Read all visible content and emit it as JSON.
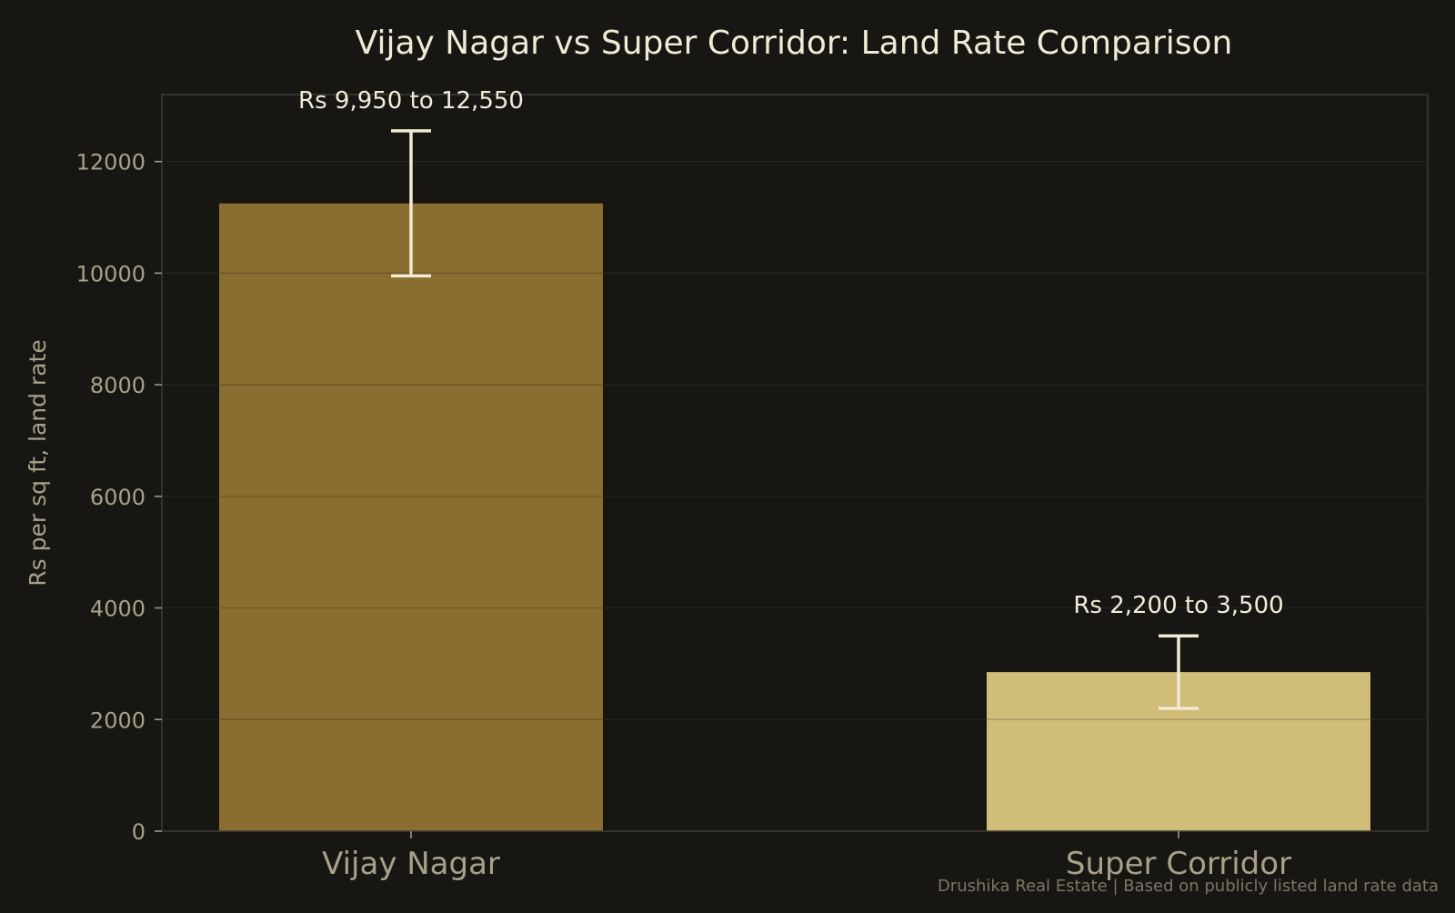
{
  "chart_data": {
    "type": "bar",
    "title": "Vijay Nagar vs Super Corridor: Land Rate Comparison",
    "xlabel": "",
    "ylabel": "Rs per sq ft, land rate",
    "categories": [
      "Vijay Nagar",
      "Super Corridor"
    ],
    "values": [
      11250,
      2850
    ],
    "error_ranges": [
      [
        9950,
        12550
      ],
      [
        2200,
        3500
      ]
    ],
    "range_labels": [
      "Rs 9,950 to 12,550",
      "Rs 2,200 to 3,500"
    ],
    "bar_colors": [
      "#8a6d30",
      "#cfbd79"
    ],
    "errorbar_color": "#f3ead2",
    "ylim": [
      0,
      13200
    ],
    "yticks": [
      0,
      2000,
      4000,
      6000,
      8000,
      10000,
      12000
    ],
    "grid": true,
    "footnote": "Drushika Real Estate | Based on publicly listed land rate data"
  },
  "colors": {
    "background": "#171612",
    "grid": "#2f2d27",
    "frame": "#3e3b33",
    "text": "#f1ead6",
    "muted_text": "#a9a08a"
  }
}
